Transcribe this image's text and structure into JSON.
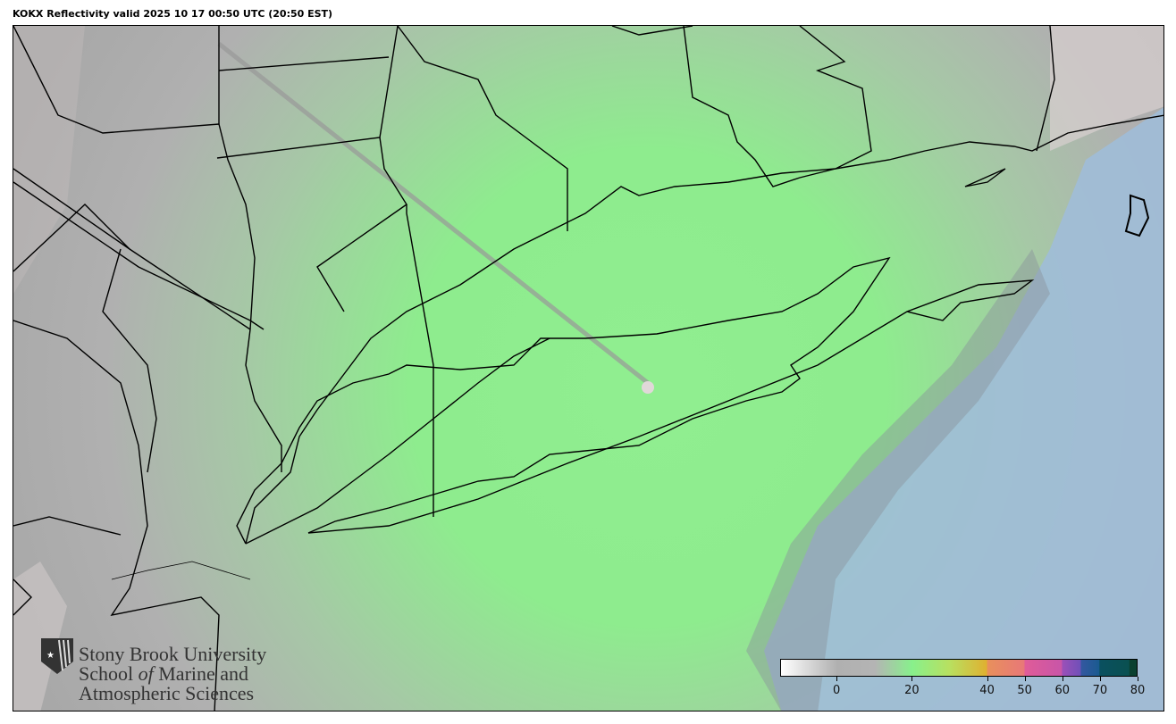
{
  "title": "KOKX Reflectivity valid 2025 10 17 00:50 UTC (20:50 EST)",
  "colorbar": {
    "range": [
      -15,
      80
    ],
    "ticks": [
      "0",
      "20",
      "40",
      "50",
      "60",
      "70",
      "80"
    ],
    "tick_values": [
      0,
      20,
      40,
      50,
      60,
      70,
      80
    ],
    "stops": [
      {
        "v": -15,
        "c": "#ffffff"
      },
      {
        "v": 0,
        "c": "#b0b0b0"
      },
      {
        "v": 10,
        "c": "#b4b4b4"
      },
      {
        "v": 20,
        "c": "#88f08c"
      },
      {
        "v": 30,
        "c": "#b8e060"
      },
      {
        "v": 40,
        "c": "#e0b030"
      },
      {
        "v": 40.1,
        "c": "#e8905c"
      },
      {
        "v": 50,
        "c": "#e87878"
      },
      {
        "v": 50.1,
        "c": "#e05c98"
      },
      {
        "v": 60,
        "c": "#c855a8"
      },
      {
        "v": 60.1,
        "c": "#9b50b8"
      },
      {
        "v": 65,
        "c": "#7050b8"
      },
      {
        "v": 65.1,
        "c": "#3458a0"
      },
      {
        "v": 70,
        "c": "#1a5a90"
      },
      {
        "v": 70.1,
        "c": "#0a5060"
      },
      {
        "v": 78,
        "c": "#0a5050"
      },
      {
        "v": 78.1,
        "c": "#0a4030"
      },
      {
        "v": 80,
        "c": "#0a4030"
      }
    ]
  },
  "logo": {
    "line1": "Stony Brook University",
    "line2a": "School ",
    "line2b": "of",
    "line2c": " Marine and",
    "line3": "Atmospheric Sciences"
  },
  "colors": {
    "ocean": "#a0bcd8",
    "land_echo": "#b0b0b0",
    "light_echo": "#8ef08e",
    "coast": "#000000"
  }
}
